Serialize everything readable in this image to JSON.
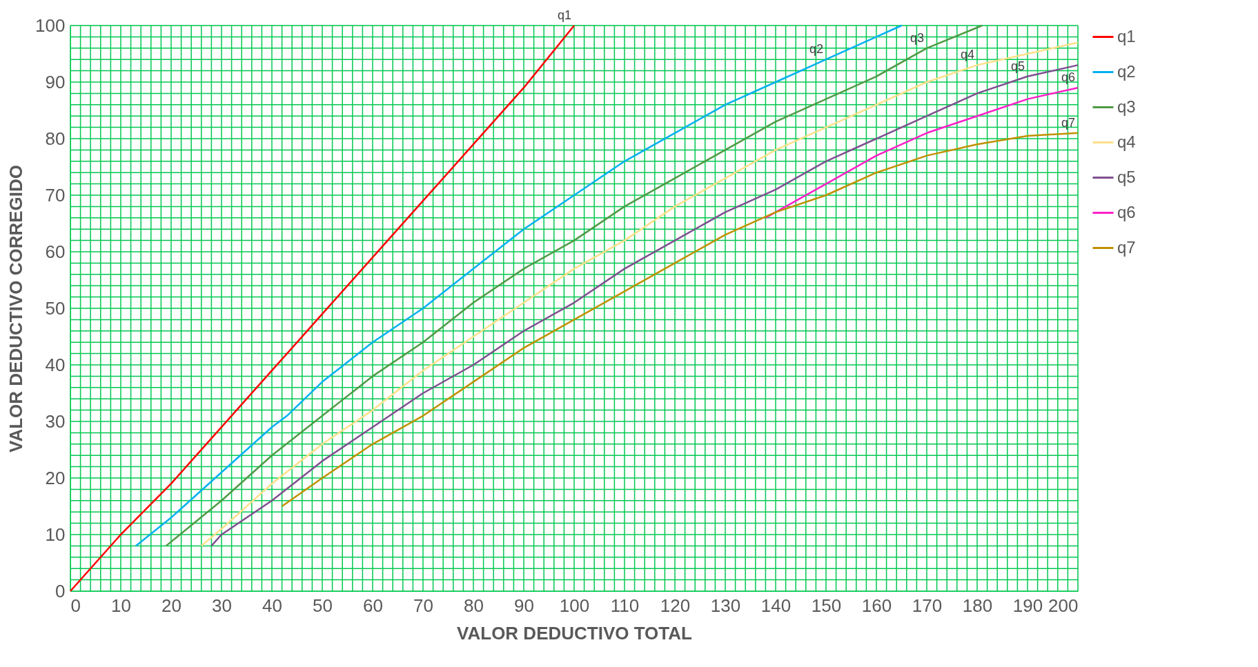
{
  "chart_data": {
    "type": "line",
    "xlabel": "VALOR DEDUCTIVO TOTAL",
    "ylabel": "VALOR DEDUCTIVO CORREGIDO",
    "xlim": [
      0,
      200
    ],
    "ylim": [
      0,
      100
    ],
    "xticks": [
      0,
      {
        "value": 2,
        "label": null
      },
      {
        "value": 4,
        "label": null
      },
      {
        "value": 6,
        "label": null
      },
      {
        "value": 8,
        "label": null
      },
      10,
      {
        "value": 12,
        "label": null
      },
      {
        "value": 14,
        "label": null
      },
      {
        "value": 16,
        "label": null
      },
      {
        "value": 18,
        "label": null
      },
      20,
      {
        "value": 22,
        "label": null
      },
      {
        "value": 24,
        "label": null
      },
      {
        "value": 26,
        "label": null
      },
      {
        "value": 28,
        "label": null
      },
      30,
      {
        "value": 32,
        "label": null
      },
      {
        "value": 34,
        "label": null
      },
      {
        "value": 36,
        "label": null
      },
      {
        "value": 38,
        "label": null
      },
      40,
      {
        "value": 42,
        "label": null
      },
      {
        "value": 44,
        "label": null
      },
      {
        "value": 46,
        "label": null
      },
      {
        "value": 48,
        "label": null
      },
      50,
      {
        "value": 52,
        "label": null
      },
      {
        "value": 54,
        "label": null
      },
      {
        "value": 56,
        "label": null
      },
      {
        "value": 58,
        "label": null
      },
      60,
      {
        "value": 62,
        "label": null
      },
      {
        "value": 64,
        "label": null
      },
      {
        "value": 66,
        "label": null
      },
      {
        "value": 68,
        "label": null
      },
      70,
      {
        "value": 72,
        "label": null
      },
      {
        "value": 74,
        "label": null
      },
      {
        "value": 76,
        "label": null
      },
      {
        "value": 78,
        "label": null
      },
      80,
      {
        "value": 82,
        "label": null
      },
      {
        "value": 84,
        "label": null
      },
      {
        "value": 86,
        "label": null
      },
      {
        "value": 88,
        "label": null
      },
      90,
      {
        "value": 92,
        "label": null
      },
      {
        "value": 94,
        "label": null
      },
      {
        "value": 96,
        "label": null
      },
      {
        "value": 98,
        "label": null
      },
      100,
      {
        "value": 102,
        "label": null
      },
      {
        "value": 104,
        "label": null
      },
      {
        "value": 106,
        "label": null
      },
      {
        "value": 108,
        "label": null
      },
      110,
      {
        "value": 112,
        "label": null
      },
      {
        "value": 114,
        "label": null
      },
      {
        "value": 116,
        "label": null
      },
      {
        "value": 118,
        "label": null
      },
      120,
      {
        "value": 122,
        "label": null
      },
      {
        "value": 124,
        "label": null
      },
      {
        "value": 126,
        "label": null
      },
      {
        "value": 128,
        "label": null
      },
      130,
      {
        "value": 132,
        "label": null
      },
      {
        "value": 134,
        "label": null
      },
      {
        "value": 136,
        "label": null
      },
      {
        "value": 138,
        "label": null
      },
      140,
      {
        "value": 142,
        "label": null
      },
      {
        "value": 144,
        "label": null
      },
      {
        "value": 146,
        "label": null
      },
      {
        "value": 148,
        "label": null
      },
      150,
      {
        "value": 152,
        "label": null
      },
      {
        "value": 154,
        "label": null
      },
      {
        "value": 156,
        "label": null
      },
      {
        "value": 158,
        "label": null
      },
      160,
      {
        "value": 162,
        "label": null
      },
      {
        "value": 164,
        "label": null
      },
      {
        "value": 166,
        "label": null
      },
      {
        "value": 168,
        "label": null
      },
      170,
      {
        "value": 172,
        "label": null
      },
      {
        "value": 174,
        "label": null
      },
      {
        "value": 176,
        "label": null
      },
      {
        "value": 178,
        "label": null
      },
      180,
      {
        "value": 182,
        "label": null
      },
      {
        "value": 184,
        "label": null
      },
      {
        "value": 186,
        "label": null
      },
      {
        "value": 188,
        "label": null
      },
      190,
      {
        "value": 192,
        "label": null
      },
      {
        "value": 194,
        "label": null
      },
      {
        "value": 196,
        "label": null
      },
      {
        "value": 198,
        "label": null
      },
      200
    ],
    "yticks": [
      0,
      {
        "value": 2,
        "label": null
      },
      {
        "value": 4,
        "label": null
      },
      {
        "value": 6,
        "label": null
      },
      {
        "value": 8,
        "label": null
      },
      10,
      {
        "value": 12,
        "label": null
      },
      {
        "value": 14,
        "label": null
      },
      {
        "value": 16,
        "label": null
      },
      {
        "value": 18,
        "label": null
      },
      20,
      {
        "value": 22,
        "label": null
      },
      {
        "value": 24,
        "label": null
      },
      {
        "value": 26,
        "label": null
      },
      {
        "value": 28,
        "label": null
      },
      30,
      {
        "value": 32,
        "label": null
      },
      {
        "value": 34,
        "label": null
      },
      {
        "value": 36,
        "label": null
      },
      {
        "value": 38,
        "label": null
      },
      40,
      {
        "value": 42,
        "label": null
      },
      {
        "value": 44,
        "label": null
      },
      {
        "value": 46,
        "label": null
      },
      {
        "value": 48,
        "label": null
      },
      50,
      {
        "value": 52,
        "label": null
      },
      {
        "value": 54,
        "label": null
      },
      {
        "value": 56,
        "label": null
      },
      {
        "value": 58,
        "label": null
      },
      60,
      {
        "value": 62,
        "label": null
      },
      {
        "value": 64,
        "label": null
      },
      {
        "value": 66,
        "label": null
      },
      {
        "value": 68,
        "label": null
      },
      70,
      {
        "value": 72,
        "label": null
      },
      {
        "value": 74,
        "label": null
      },
      {
        "value": 76,
        "label": null
      },
      {
        "value": 78,
        "label": null
      },
      80,
      {
        "value": 82,
        "label": null
      },
      {
        "value": 84,
        "label": null
      },
      {
        "value": 86,
        "label": null
      },
      {
        "value": 88,
        "label": null
      },
      90,
      {
        "value": 92,
        "label": null
      },
      {
        "value": 94,
        "label": null
      },
      {
        "value": 96,
        "label": null
      },
      {
        "value": 98,
        "label": null
      },
      100
    ],
    "grid": true,
    "legend": "right",
    "marker": "none",
    "line_style": "solid",
    "series": [
      {
        "name": "q1",
        "color": "#ff0000",
        "x": [
          0,
          10,
          20,
          25,
          30,
          40,
          50,
          60,
          70,
          80,
          90,
          100
        ],
        "values": [
          0,
          10,
          19,
          24,
          29,
          39,
          49,
          59,
          69,
          79,
          89,
          100
        ]
      },
      {
        "name": "q2",
        "color": "#00b0f0",
        "x": [
          13,
          20,
          30,
          40,
          43,
          50,
          60,
          70,
          80,
          90,
          100,
          110,
          120,
          130,
          140,
          150,
          160,
          165
        ],
        "values": [
          8,
          13,
          21,
          29,
          31,
          37,
          44,
          50,
          57,
          64,
          70,
          76,
          81,
          86,
          90,
          94,
          98,
          100
        ]
      },
      {
        "name": "q3",
        "color": "#4f9a45",
        "x": [
          19,
          30,
          40,
          50,
          60,
          70,
          80,
          90,
          100,
          110,
          120,
          130,
          140,
          150,
          160,
          170,
          181
        ],
        "values": [
          8,
          16,
          24,
          31,
          38,
          44,
          51,
          57,
          62,
          68,
          73,
          78,
          83,
          87,
          91,
          96,
          100
        ]
      },
      {
        "name": "q4",
        "color": "#ffe08a",
        "x": [
          26,
          30,
          40,
          50,
          60,
          70,
          80,
          90,
          100,
          110,
          120,
          130,
          140,
          150,
          160,
          170,
          180,
          190,
          200
        ],
        "values": [
          8,
          11,
          19,
          26,
          32,
          39,
          45,
          51,
          57,
          62,
          68,
          73,
          78,
          82,
          86,
          90,
          93,
          95,
          97
        ]
      },
      {
        "name": "q5",
        "color": "#7f4f8f",
        "x": [
          28,
          30,
          40,
          50,
          60,
          70,
          80,
          90,
          100,
          110,
          120,
          130,
          140,
          150,
          160,
          170,
          180,
          190,
          200
        ],
        "values": [
          8,
          10,
          16,
          23,
          29,
          35,
          40,
          46,
          51,
          57,
          62,
          67,
          71,
          76,
          80,
          84,
          88,
          91,
          93
        ]
      },
      {
        "name": "q6",
        "color": "#ff1fc8",
        "x": [
          138,
          140,
          150,
          160,
          170,
          180,
          190,
          200
        ],
        "values": [
          66,
          67,
          72,
          77,
          81,
          84,
          87,
          89
        ]
      },
      {
        "name": "q7",
        "color": "#c09000",
        "x": [
          42,
          50,
          60,
          70,
          80,
          90,
          100,
          110,
          120,
          130,
          140,
          150,
          160,
          170,
          180,
          190,
          200
        ],
        "values": [
          15,
          20,
          26,
          31,
          37,
          43,
          48,
          53,
          58,
          63,
          67,
          70,
          74,
          77,
          79,
          80.5,
          81
        ]
      }
    ],
    "annotations": [
      {
        "text": "q1",
        "x": 100,
        "y": 100
      },
      {
        "text": "q2",
        "x": 150,
        "y": 94
      },
      {
        "text": "q3",
        "x": 170,
        "y": 96
      },
      {
        "text": "q4",
        "x": 180,
        "y": 93
      },
      {
        "text": "q5",
        "x": 190,
        "y": 91
      },
      {
        "text": "q6",
        "x": 200,
        "y": 89
      },
      {
        "text": "q7",
        "x": 200,
        "y": 81
      }
    ]
  }
}
